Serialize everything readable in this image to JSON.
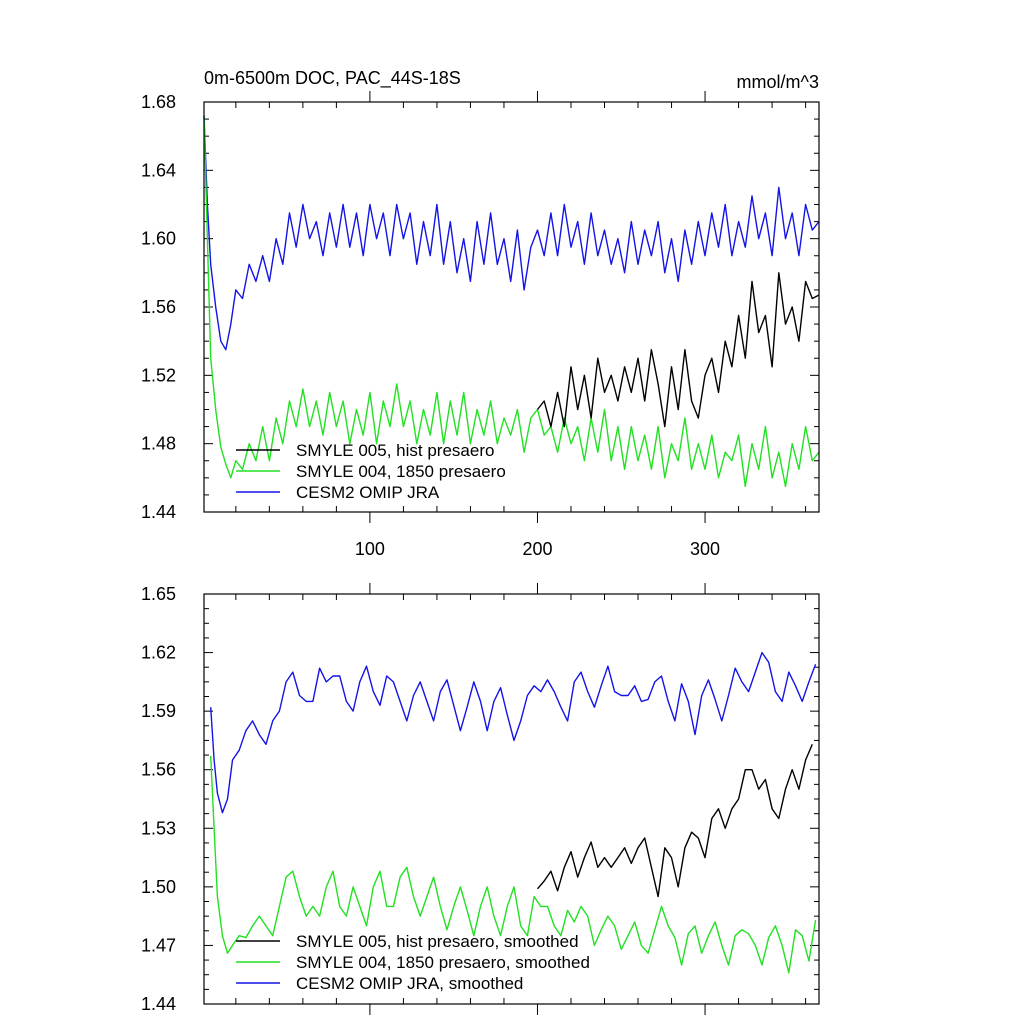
{
  "chart_data": [
    {
      "type": "line",
      "title_left": "0m-6500m DOC, PAC_44S-18S",
      "title_right": "mmol/m^3",
      "xlim": [
        1,
        368
      ],
      "ylim": [
        1.44,
        1.68
      ],
      "yticks": [
        1.44,
        1.48,
        1.52,
        1.56,
        1.6,
        1.64,
        1.68
      ],
      "yticklabels": [
        "1.44",
        "1.48",
        "1.52",
        "1.56",
        "1.60",
        "1.64",
        "1.68"
      ],
      "xticks": [
        100,
        200,
        300
      ],
      "xticklabels": [
        "100",
        "200",
        "300"
      ],
      "legend_position": "bottom-left",
      "series": [
        {
          "name": "SMYLE 005, hist presaero",
          "color": "#000000",
          "x": [
            200,
            204,
            208,
            212,
            216,
            220,
            224,
            228,
            232,
            236,
            240,
            244,
            248,
            252,
            256,
            260,
            264,
            268,
            272,
            276,
            280,
            284,
            288,
            292,
            296,
            300,
            304,
            308,
            312,
            316,
            320,
            324,
            328,
            332,
            336,
            340,
            344,
            348,
            352,
            356,
            360,
            364,
            368
          ],
          "values": [
            1.5,
            1.505,
            1.49,
            1.51,
            1.49,
            1.525,
            1.5,
            1.52,
            1.495,
            1.53,
            1.51,
            1.52,
            1.505,
            1.525,
            1.51,
            1.53,
            1.505,
            1.535,
            1.515,
            1.49,
            1.525,
            1.5,
            1.535,
            1.505,
            1.495,
            1.52,
            1.53,
            1.51,
            1.54,
            1.525,
            1.555,
            1.53,
            1.575,
            1.545,
            1.555,
            1.525,
            1.58,
            1.55,
            1.56,
            1.54,
            1.575,
            1.565,
            1.567
          ]
        },
        {
          "name": "SMYLE 004, 1850 presaero",
          "color": "#22e022",
          "x": [
            1,
            3,
            5,
            8,
            11,
            14,
            17,
            20,
            24,
            28,
            32,
            36,
            40,
            44,
            48,
            52,
            56,
            60,
            64,
            68,
            72,
            76,
            80,
            84,
            88,
            92,
            96,
            100,
            104,
            108,
            112,
            116,
            120,
            124,
            128,
            132,
            136,
            140,
            144,
            148,
            152,
            156,
            160,
            164,
            168,
            172,
            176,
            180,
            184,
            188,
            192,
            196,
            200,
            204,
            208,
            212,
            216,
            220,
            224,
            228,
            232,
            236,
            240,
            244,
            248,
            252,
            256,
            260,
            264,
            268,
            272,
            276,
            280,
            284,
            288,
            292,
            296,
            300,
            304,
            308,
            312,
            316,
            320,
            324,
            328,
            332,
            336,
            340,
            344,
            348,
            352,
            356,
            360,
            364,
            368
          ],
          "values": [
            1.672,
            1.6,
            1.53,
            1.5,
            1.478,
            1.468,
            1.46,
            1.47,
            1.465,
            1.48,
            1.47,
            1.49,
            1.47,
            1.495,
            1.48,
            1.505,
            1.49,
            1.512,
            1.49,
            1.505,
            1.485,
            1.51,
            1.49,
            1.505,
            1.48,
            1.5,
            1.485,
            1.51,
            1.48,
            1.505,
            1.49,
            1.515,
            1.49,
            1.505,
            1.48,
            1.5,
            1.485,
            1.51,
            1.48,
            1.505,
            1.485,
            1.51,
            1.48,
            1.5,
            1.485,
            1.505,
            1.48,
            1.495,
            1.485,
            1.5,
            1.475,
            1.495,
            1.5,
            1.485,
            1.49,
            1.475,
            1.495,
            1.48,
            1.49,
            1.47,
            1.495,
            1.475,
            1.5,
            1.47,
            1.49,
            1.465,
            1.49,
            1.47,
            1.485,
            1.465,
            1.49,
            1.46,
            1.48,
            1.47,
            1.495,
            1.465,
            1.48,
            1.465,
            1.485,
            1.46,
            1.475,
            1.47,
            1.485,
            1.455,
            1.48,
            1.465,
            1.49,
            1.46,
            1.475,
            1.455,
            1.48,
            1.465,
            1.49,
            1.47,
            1.475
          ]
        },
        {
          "name": "CESM2 OMIP JRA",
          "color": "#1414e6",
          "x": [
            1,
            3,
            5,
            8,
            11,
            14,
            17,
            20,
            24,
            28,
            32,
            36,
            40,
            44,
            48,
            52,
            56,
            60,
            64,
            68,
            72,
            76,
            80,
            84,
            88,
            92,
            96,
            100,
            104,
            108,
            112,
            116,
            120,
            124,
            128,
            132,
            136,
            140,
            144,
            148,
            152,
            156,
            160,
            164,
            168,
            172,
            176,
            180,
            184,
            188,
            192,
            196,
            200,
            204,
            208,
            212,
            216,
            220,
            224,
            228,
            232,
            236,
            240,
            244,
            248,
            252,
            256,
            260,
            264,
            268,
            272,
            276,
            280,
            284,
            288,
            292,
            296,
            300,
            304,
            308,
            312,
            316,
            320,
            324,
            328,
            332,
            336,
            340,
            344,
            348,
            352,
            356,
            360,
            364,
            368
          ],
          "values": [
            1.672,
            1.62,
            1.585,
            1.56,
            1.54,
            1.535,
            1.55,
            1.57,
            1.565,
            1.585,
            1.575,
            1.59,
            1.575,
            1.6,
            1.585,
            1.615,
            1.595,
            1.62,
            1.6,
            1.61,
            1.59,
            1.615,
            1.595,
            1.62,
            1.595,
            1.615,
            1.59,
            1.62,
            1.6,
            1.615,
            1.59,
            1.62,
            1.6,
            1.615,
            1.585,
            1.61,
            1.59,
            1.62,
            1.585,
            1.61,
            1.58,
            1.6,
            1.575,
            1.61,
            1.585,
            1.615,
            1.585,
            1.6,
            1.575,
            1.605,
            1.57,
            1.595,
            1.605,
            1.59,
            1.615,
            1.59,
            1.62,
            1.595,
            1.61,
            1.585,
            1.615,
            1.59,
            1.605,
            1.585,
            1.6,
            1.58,
            1.61,
            1.585,
            1.605,
            1.59,
            1.61,
            1.58,
            1.6,
            1.575,
            1.605,
            1.585,
            1.61,
            1.59,
            1.615,
            1.595,
            1.62,
            1.59,
            1.61,
            1.595,
            1.625,
            1.6,
            1.615,
            1.59,
            1.63,
            1.6,
            1.615,
            1.59,
            1.62,
            1.605,
            1.61
          ]
        }
      ]
    },
    {
      "type": "line",
      "xlim": [
        1,
        368
      ],
      "ylim": [
        1.44,
        1.65
      ],
      "yticks": [
        1.44,
        1.47,
        1.5,
        1.53,
        1.56,
        1.59,
        1.62,
        1.65
      ],
      "yticklabels": [
        "1.44",
        "1.47",
        "1.50",
        "1.53",
        "1.56",
        "1.59",
        "1.62",
        "1.65"
      ],
      "xticks": [
        100,
        200,
        300
      ],
      "legend_position": "bottom-left",
      "series": [
        {
          "name": "SMYLE 005, hist presaero, smoothed",
          "color": "#000000",
          "x": [
            200,
            204,
            208,
            212,
            216,
            220,
            224,
            228,
            232,
            236,
            240,
            244,
            248,
            252,
            256,
            260,
            264,
            268,
            272,
            276,
            280,
            284,
            288,
            292,
            296,
            300,
            304,
            308,
            312,
            316,
            320,
            324,
            328,
            332,
            336,
            340,
            344,
            348,
            352,
            356,
            360,
            364
          ],
          "values": [
            1.499,
            1.503,
            1.508,
            1.498,
            1.51,
            1.518,
            1.505,
            1.515,
            1.523,
            1.51,
            1.515,
            1.51,
            1.515,
            1.52,
            1.512,
            1.52,
            1.525,
            1.51,
            1.495,
            1.52,
            1.515,
            1.5,
            1.52,
            1.528,
            1.525,
            1.515,
            1.535,
            1.54,
            1.53,
            1.54,
            1.545,
            1.56,
            1.56,
            1.55,
            1.555,
            1.54,
            1.535,
            1.55,
            1.56,
            1.55,
            1.565,
            1.573
          ]
        },
        {
          "name": "SMYLE 004, 1850 presaero, smoothed",
          "color": "#22e022",
          "x": [
            5,
            7,
            9,
            12,
            15,
            18,
            22,
            26,
            30,
            34,
            38,
            42,
            46,
            50,
            54,
            58,
            62,
            66,
            70,
            74,
            78,
            82,
            86,
            90,
            94,
            98,
            102,
            106,
            110,
            114,
            118,
            122,
            126,
            130,
            134,
            138,
            142,
            146,
            150,
            154,
            158,
            162,
            166,
            170,
            174,
            178,
            182,
            186,
            190,
            194,
            198,
            202,
            206,
            210,
            214,
            218,
            222,
            226,
            230,
            234,
            238,
            242,
            246,
            250,
            254,
            258,
            262,
            266,
            270,
            274,
            278,
            282,
            286,
            290,
            294,
            298,
            302,
            306,
            310,
            314,
            318,
            322,
            326,
            330,
            334,
            338,
            342,
            346,
            350,
            354,
            358,
            362,
            366
          ],
          "values": [
            1.567,
            1.53,
            1.495,
            1.475,
            1.466,
            1.47,
            1.475,
            1.474,
            1.48,
            1.485,
            1.48,
            1.475,
            1.49,
            1.505,
            1.508,
            1.495,
            1.485,
            1.49,
            1.485,
            1.5,
            1.508,
            1.49,
            1.485,
            1.5,
            1.49,
            1.48,
            1.5,
            1.508,
            1.49,
            1.49,
            1.505,
            1.51,
            1.495,
            1.485,
            1.495,
            1.505,
            1.49,
            1.478,
            1.49,
            1.5,
            1.488,
            1.475,
            1.49,
            1.5,
            1.485,
            1.475,
            1.49,
            1.5,
            1.48,
            1.475,
            1.495,
            1.49,
            1.49,
            1.48,
            1.475,
            1.488,
            1.482,
            1.49,
            1.485,
            1.47,
            1.478,
            1.485,
            1.48,
            1.468,
            1.475,
            1.482,
            1.47,
            1.466,
            1.478,
            1.49,
            1.48,
            1.474,
            1.46,
            1.476,
            1.48,
            1.466,
            1.475,
            1.482,
            1.47,
            1.46,
            1.475,
            1.478,
            1.476,
            1.47,
            1.46,
            1.474,
            1.48,
            1.47,
            1.456,
            1.478,
            1.475,
            1.462,
            1.483
          ]
        },
        {
          "name": "CESM2 OMIP JRA, smoothed",
          "color": "#1414e6",
          "x": [
            5,
            7,
            9,
            12,
            15,
            18,
            22,
            26,
            30,
            34,
            38,
            42,
            46,
            50,
            54,
            58,
            62,
            66,
            70,
            74,
            78,
            82,
            86,
            90,
            94,
            98,
            102,
            106,
            110,
            114,
            118,
            122,
            126,
            130,
            134,
            138,
            142,
            146,
            150,
            154,
            158,
            162,
            166,
            170,
            174,
            178,
            182,
            186,
            190,
            194,
            198,
            202,
            206,
            210,
            214,
            218,
            222,
            226,
            230,
            234,
            238,
            242,
            246,
            250,
            254,
            258,
            262,
            266,
            270,
            274,
            278,
            282,
            286,
            290,
            294,
            298,
            302,
            306,
            310,
            314,
            318,
            322,
            326,
            330,
            334,
            338,
            342,
            346,
            350,
            354,
            358,
            362,
            366
          ],
          "values": [
            1.592,
            1.565,
            1.548,
            1.538,
            1.545,
            1.565,
            1.57,
            1.58,
            1.585,
            1.578,
            1.573,
            1.585,
            1.59,
            1.605,
            1.61,
            1.598,
            1.595,
            1.595,
            1.612,
            1.605,
            1.608,
            1.608,
            1.595,
            1.59,
            1.605,
            1.613,
            1.6,
            1.593,
            1.608,
            1.605,
            1.595,
            1.585,
            1.598,
            1.605,
            1.595,
            1.585,
            1.6,
            1.606,
            1.593,
            1.58,
            1.592,
            1.605,
            1.595,
            1.58,
            1.595,
            1.602,
            1.588,
            1.575,
            1.585,
            1.598,
            1.603,
            1.6,
            1.606,
            1.6,
            1.592,
            1.585,
            1.605,
            1.61,
            1.6,
            1.592,
            1.603,
            1.613,
            1.6,
            1.598,
            1.598,
            1.603,
            1.595,
            1.596,
            1.605,
            1.608,
            1.595,
            1.585,
            1.604,
            1.595,
            1.578,
            1.598,
            1.606,
            1.596,
            1.585,
            1.598,
            1.612,
            1.605,
            1.6,
            1.61,
            1.62,
            1.615,
            1.6,
            1.595,
            1.61,
            1.603,
            1.595,
            1.605,
            1.614
          ]
        }
      ]
    }
  ]
}
